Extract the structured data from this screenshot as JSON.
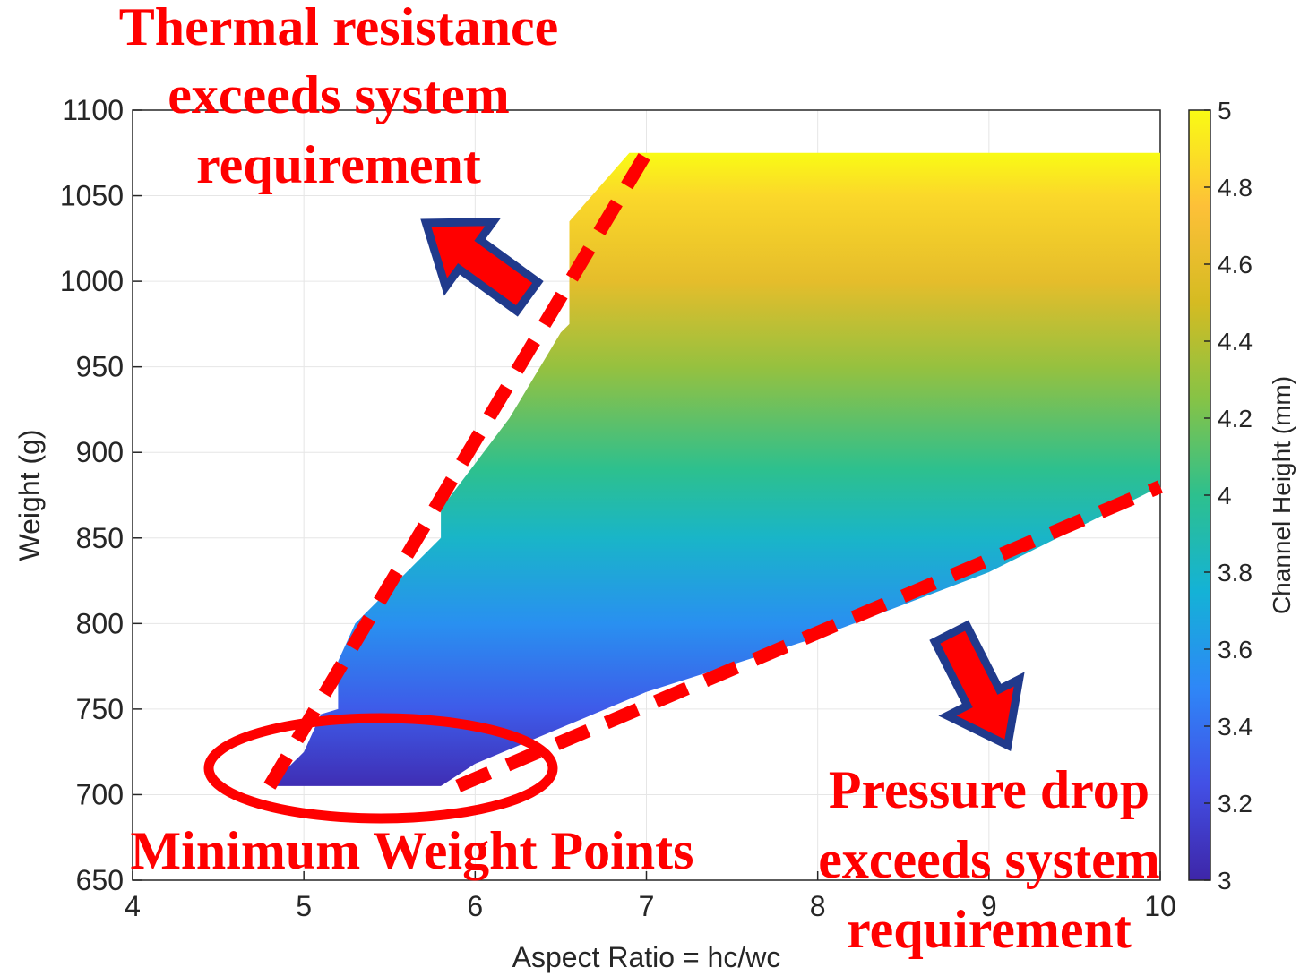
{
  "chart_data": {
    "type": "scatter",
    "xlabel": "Aspect Ratio = hc/wc",
    "ylabel": "Weight (g)",
    "xlim": [
      4,
      10
    ],
    "ylim": [
      650,
      1100
    ],
    "x_ticks": [
      "4",
      "5",
      "6",
      "7",
      "8",
      "9",
      "10"
    ],
    "y_ticks": [
      "650",
      "700",
      "750",
      "800",
      "850",
      "900",
      "950",
      "1000",
      "1050",
      "1100"
    ],
    "grid": true,
    "feasible_region": {
      "upper_boundary": [
        [
          4.8,
          705
        ],
        [
          5.0,
          725
        ],
        [
          5.1,
          747
        ],
        [
          5.2,
          750
        ],
        [
          5.2,
          778
        ],
        [
          5.3,
          800
        ],
        [
          5.8,
          850
        ],
        [
          5.8,
          867
        ],
        [
          6.2,
          920
        ],
        [
          6.5,
          970
        ],
        [
          6.55,
          975
        ],
        [
          6.55,
          1035
        ],
        [
          6.9,
          1075
        ],
        [
          10.0,
          1075
        ]
      ],
      "lower_boundary": [
        [
          10.0,
          880
        ],
        [
          9.0,
          830
        ],
        [
          8.0,
          792
        ],
        [
          7.0,
          760
        ],
        [
          6.0,
          718
        ],
        [
          5.8,
          705
        ],
        [
          4.8,
          705
        ]
      ],
      "color_by": "Channel Height (mm)",
      "color_range": [
        3,
        5
      ],
      "color_vs_weight": [
        [
          705,
          3.05
        ],
        [
          750,
          3.3
        ],
        [
          800,
          3.55
        ],
        [
          850,
          3.8
        ],
        [
          890,
          4.0
        ],
        [
          950,
          4.3
        ],
        [
          1000,
          4.6
        ],
        [
          1050,
          4.85
        ],
        [
          1075,
          5.0
        ]
      ]
    },
    "colorbar": {
      "label": "Channel Height (mm)",
      "ticks": [
        "3",
        "3.2",
        "3.4",
        "3.6",
        "3.8",
        "4",
        "4.2",
        "4.4",
        "4.6",
        "4.8",
        "5"
      ],
      "colormap": [
        "#3e26a8",
        "#4250e6",
        "#2e87f7",
        "#14b2d6",
        "#2dc08e",
        "#86c346",
        "#d5bb22",
        "#fdc038",
        "#f9fb14"
      ]
    },
    "boundary_lines": [
      {
        "from": [
          4.8,
          705
        ],
        "to": [
          7.0,
          1075
        ]
      },
      {
        "from": [
          5.9,
          705
        ],
        "to": [
          10.0,
          880
        ]
      }
    ],
    "annotations": {
      "thermal": [
        "Thermal resistance",
        "exceeds system",
        "requirement"
      ],
      "pressure": [
        "Pressure drop",
        "exceeds system",
        "requirement"
      ],
      "minimum": "Minimum Weight Points"
    },
    "annotation_color": "#ff0000",
    "arrow_outline_color": "#203a8c"
  }
}
